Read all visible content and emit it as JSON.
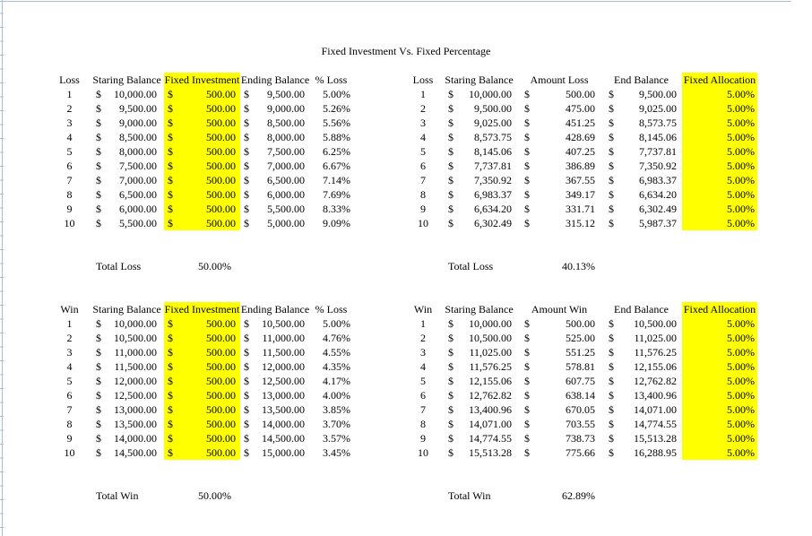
{
  "title": "Fixed Investment Vs. Fixed Percentage",
  "currency_symbol": "$",
  "colors": {
    "highlight_yellow": "#ffff00",
    "gridline_blue": "#aabdd8",
    "text": "#000000",
    "background": "#ffffff"
  },
  "tables": [
    {
      "name": "loss-fixed-investment",
      "headers": [
        "Loss",
        "Staring Balance",
        "Fixed Investment",
        "Ending Balance",
        "% Loss"
      ],
      "highlight_column": 2,
      "rows": [
        [
          "1",
          "10,000.00",
          "500.00",
          "9,500.00",
          "5.00%"
        ],
        [
          "2",
          "9,500.00",
          "500.00",
          "9,000.00",
          "5.26%"
        ],
        [
          "3",
          "9,000.00",
          "500.00",
          "8,500.00",
          "5.56%"
        ],
        [
          "4",
          "8,500.00",
          "500.00",
          "8,000.00",
          "5.88%"
        ],
        [
          "5",
          "8,000.00",
          "500.00",
          "7,500.00",
          "6.25%"
        ],
        [
          "6",
          "7,500.00",
          "500.00",
          "7,000.00",
          "6.67%"
        ],
        [
          "7",
          "7,000.00",
          "500.00",
          "6,500.00",
          "7.14%"
        ],
        [
          "8",
          "6,500.00",
          "500.00",
          "6,000.00",
          "7.69%"
        ],
        [
          "9",
          "6,000.00",
          "500.00",
          "5,500.00",
          "8.33%"
        ],
        [
          "10",
          "5,500.00",
          "500.00",
          "5,000.00",
          "9.09%"
        ]
      ],
      "total_label": "Total Loss",
      "total_value": "50.00%"
    },
    {
      "name": "loss-fixed-allocation",
      "headers": [
        "Loss",
        "Staring Balance",
        "Amount Loss",
        "End Balance",
        "Fixed Allocation"
      ],
      "highlight_column": 4,
      "rows": [
        [
          "1",
          "10,000.00",
          "500.00",
          "9,500.00",
          "5.00%"
        ],
        [
          "2",
          "9,500.00",
          "475.00",
          "9,025.00",
          "5.00%"
        ],
        [
          "3",
          "9,025.00",
          "451.25",
          "8,573.75",
          "5.00%"
        ],
        [
          "4",
          "8,573.75",
          "428.69",
          "8,145.06",
          "5.00%"
        ],
        [
          "5",
          "8,145.06",
          "407.25",
          "7,737.81",
          "5.00%"
        ],
        [
          "6",
          "7,737.81",
          "386.89",
          "7,350.92",
          "5.00%"
        ],
        [
          "7",
          "7,350.92",
          "367.55",
          "6,983.37",
          "5.00%"
        ],
        [
          "8",
          "6,983.37",
          "349.17",
          "6,634.20",
          "5.00%"
        ],
        [
          "9",
          "6,634.20",
          "331.71",
          "6,302.49",
          "5.00%"
        ],
        [
          "10",
          "6,302.49",
          "315.12",
          "5,987.37",
          "5.00%"
        ]
      ],
      "total_label": "Total Loss",
      "total_value": "40.13%"
    },
    {
      "name": "win-fixed-investment",
      "headers": [
        "Win",
        "Staring Balance",
        "Fixed Investment",
        "Ending Balance",
        "% Loss"
      ],
      "highlight_column": 2,
      "rows": [
        [
          "1",
          "10,000.00",
          "500.00",
          "10,500.00",
          "5.00%"
        ],
        [
          "2",
          "10,500.00",
          "500.00",
          "11,000.00",
          "4.76%"
        ],
        [
          "3",
          "11,000.00",
          "500.00",
          "11,500.00",
          "4.55%"
        ],
        [
          "4",
          "11,500.00",
          "500.00",
          "12,000.00",
          "4.35%"
        ],
        [
          "5",
          "12,000.00",
          "500.00",
          "12,500.00",
          "4.17%"
        ],
        [
          "6",
          "12,500.00",
          "500.00",
          "13,000.00",
          "4.00%"
        ],
        [
          "7",
          "13,000.00",
          "500.00",
          "13,500.00",
          "3.85%"
        ],
        [
          "8",
          "13,500.00",
          "500.00",
          "14,000.00",
          "3.70%"
        ],
        [
          "9",
          "14,000.00",
          "500.00",
          "14,500.00",
          "3.57%"
        ],
        [
          "10",
          "14,500.00",
          "500.00",
          "15,000.00",
          "3.45%"
        ]
      ],
      "total_label": "Total Win",
      "total_value": "50.00%"
    },
    {
      "name": "win-fixed-allocation",
      "headers": [
        "Win",
        "Staring Balance",
        "Amount Win",
        "End Balance",
        "Fixed Allocation"
      ],
      "highlight_column": 4,
      "rows": [
        [
          "1",
          "10,000.00",
          "500.00",
          "10,500.00",
          "5.00%"
        ],
        [
          "2",
          "10,500.00",
          "525.00",
          "11,025.00",
          "5.00%"
        ],
        [
          "3",
          "11,025.00",
          "551.25",
          "11,576.25",
          "5.00%"
        ],
        [
          "4",
          "11,576.25",
          "578.81",
          "12,155.06",
          "5.00%"
        ],
        [
          "5",
          "12,155.06",
          "607.75",
          "12,762.82",
          "5.00%"
        ],
        [
          "6",
          "12,762.82",
          "638.14",
          "13,400.96",
          "5.00%"
        ],
        [
          "7",
          "13,400.96",
          "670.05",
          "14,071.00",
          "5.00%"
        ],
        [
          "8",
          "14,071.00",
          "703.55",
          "14,774.55",
          "5.00%"
        ],
        [
          "9",
          "14,774.55",
          "738.73",
          "15,513.28",
          "5.00%"
        ],
        [
          "10",
          "15,513.28",
          "775.66",
          "16,288.95",
          "5.00%"
        ]
      ],
      "total_label": "Total Win",
      "total_value": "62.89%"
    }
  ]
}
